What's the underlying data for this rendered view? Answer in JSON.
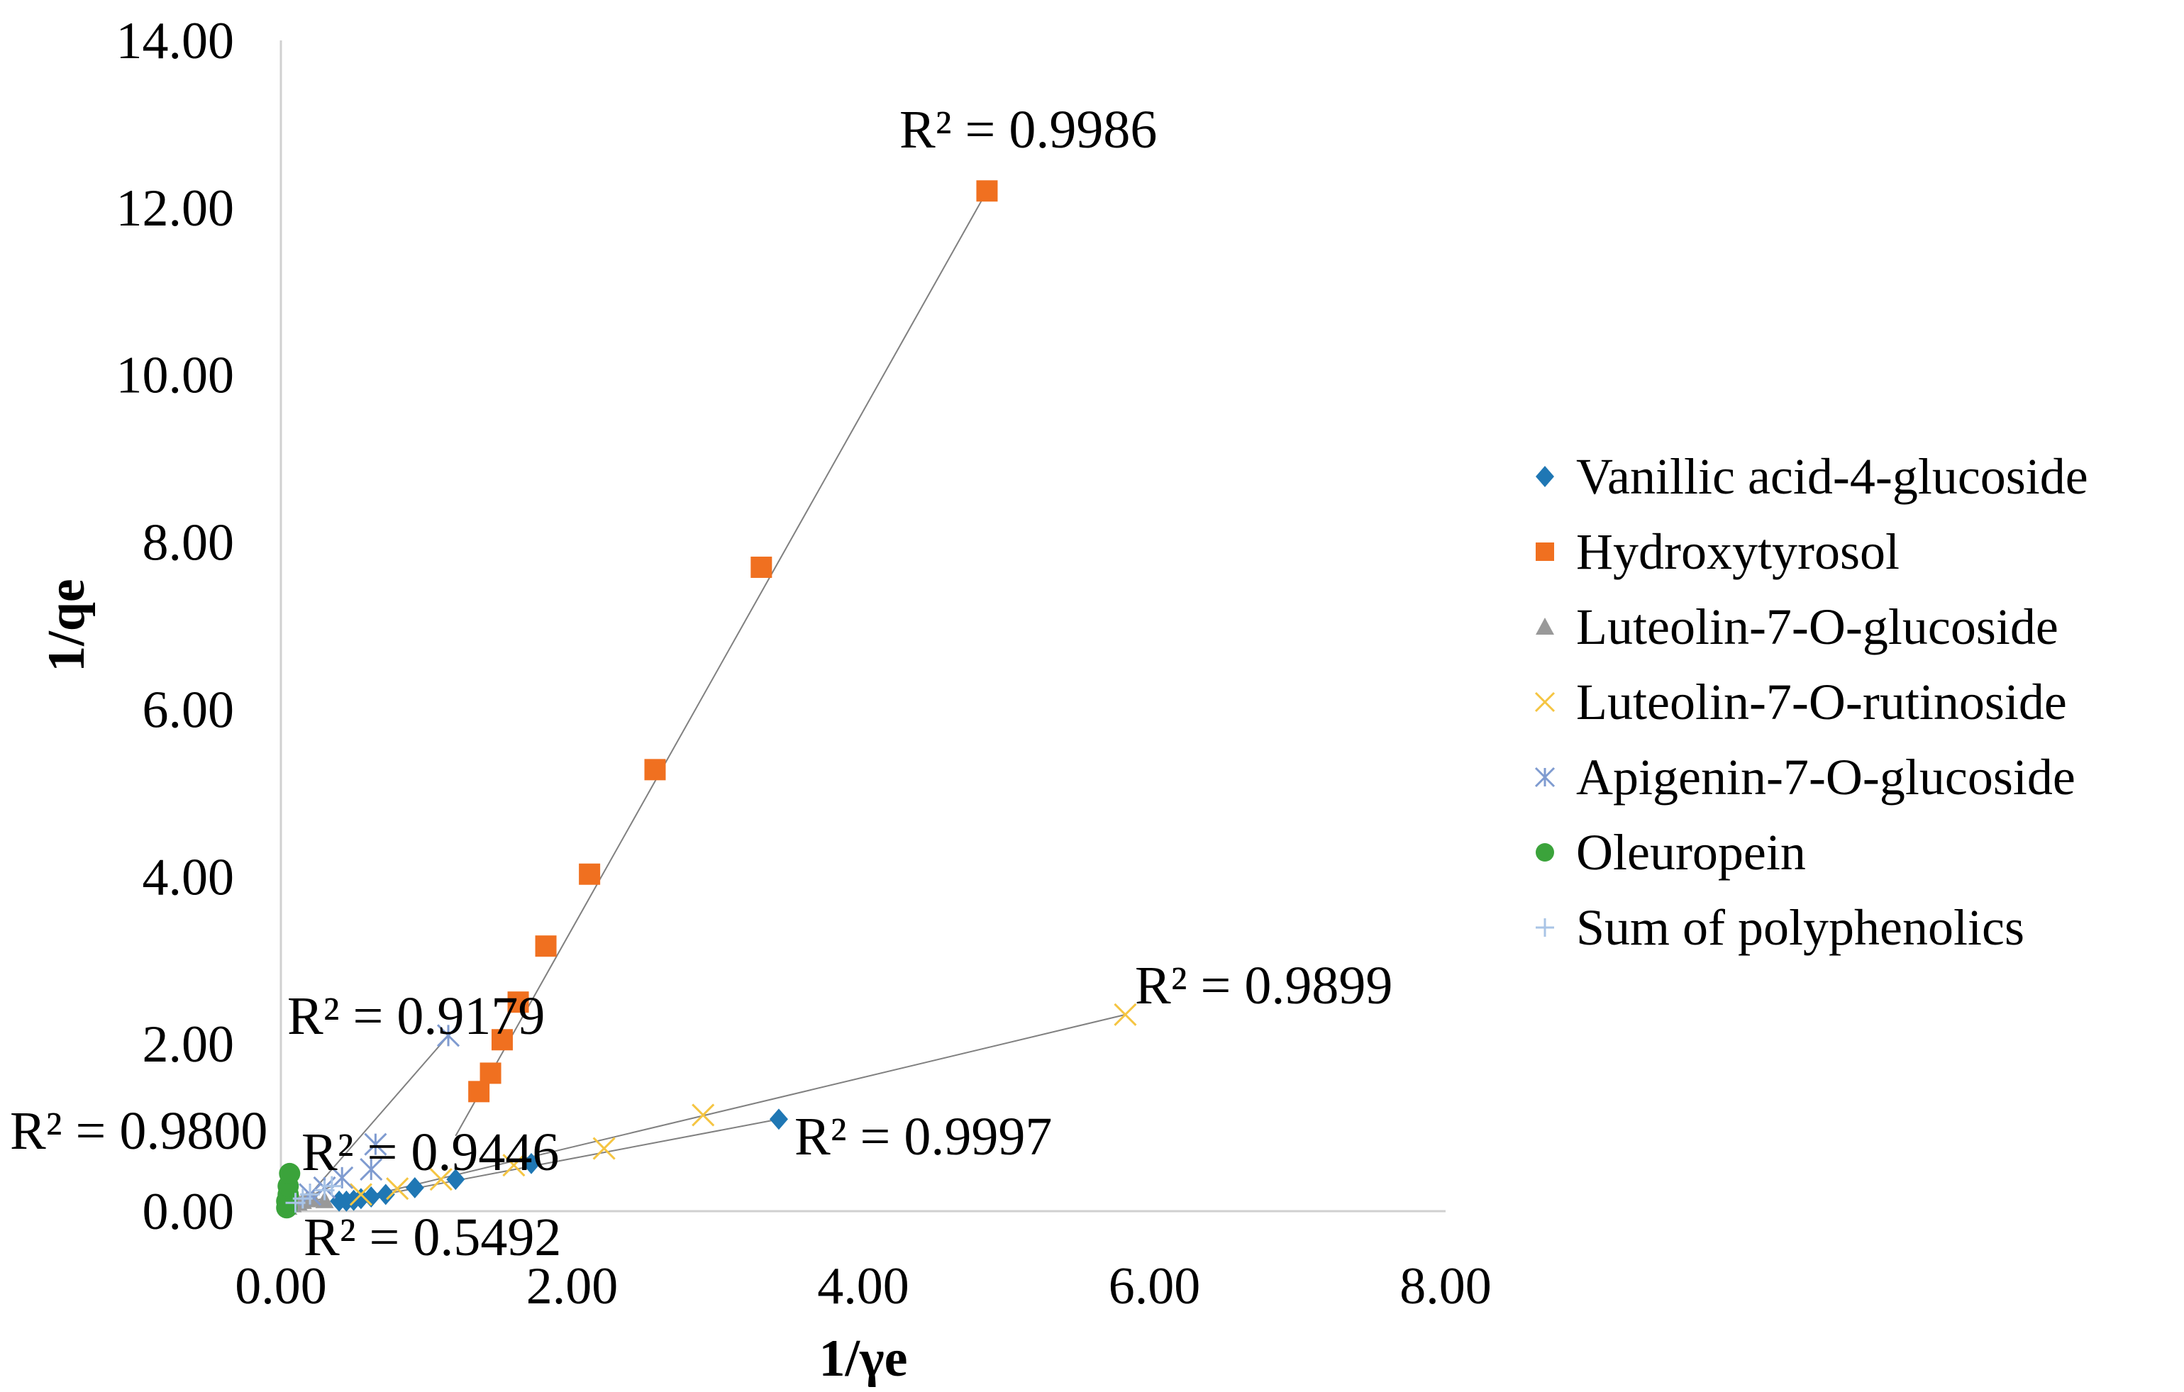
{
  "chart_data": {
    "type": "scatter",
    "xlabel": "1/γe",
    "ylabel": "1/qe",
    "xlim": [
      0,
      8
    ],
    "ylim": [
      0,
      14
    ],
    "x_ticks": [
      "0.00",
      "2.00",
      "4.00",
      "6.00",
      "8.00"
    ],
    "y_ticks": [
      "0.00",
      "2.00",
      "4.00",
      "6.00",
      "8.00",
      "10.00",
      "12.00",
      "14.00"
    ],
    "grid": false,
    "legend_position": "right",
    "series": [
      {
        "name": "Vanillic acid-4-glucoside",
        "marker": "diamond",
        "color": "#1F77B4",
        "points": [
          [
            0.4,
            0.12
          ],
          [
            0.45,
            0.12
          ],
          [
            0.5,
            0.13
          ],
          [
            0.55,
            0.15
          ],
          [
            0.62,
            0.17
          ],
          [
            0.72,
            0.2
          ],
          [
            0.92,
            0.28
          ],
          [
            1.2,
            0.38
          ],
          [
            1.72,
            0.57
          ],
          [
            3.42,
            1.1
          ]
        ],
        "r2_label": "R² = 0.9997",
        "trendline": [
          [
            0.4,
            0.1
          ],
          [
            3.42,
            1.1
          ]
        ]
      },
      {
        "name": "Hydroxytyrosol",
        "marker": "square",
        "color": "#F07020",
        "points": [
          [
            1.36,
            1.43
          ],
          [
            1.44,
            1.65
          ],
          [
            1.52,
            2.05
          ],
          [
            1.63,
            2.5
          ],
          [
            1.82,
            3.17
          ],
          [
            2.12,
            4.03
          ],
          [
            2.57,
            5.28
          ],
          [
            3.3,
            7.7
          ],
          [
            4.85,
            12.2
          ]
        ],
        "r2_label": "R² = 0.9986",
        "trendline": [
          [
            1.2,
            0.9
          ],
          [
            4.85,
            12.2
          ]
        ]
      },
      {
        "name": "Luteolin-7-O-glucoside",
        "marker": "triangle",
        "color": "#999999",
        "points": [
          [
            0.05,
            0.05
          ],
          [
            0.08,
            0.08
          ],
          [
            0.12,
            0.1
          ],
          [
            0.15,
            0.12
          ],
          [
            0.18,
            0.14
          ],
          [
            0.22,
            0.15
          ],
          [
            0.3,
            0.13
          ]
        ],
        "r2_label": "R² = 0.5492",
        "trendline": [
          [
            0.05,
            0.08
          ],
          [
            0.3,
            0.15
          ]
        ]
      },
      {
        "name": "Luteolin-7-O-rutinoside",
        "marker": "x",
        "color": "#F5C542",
        "points": [
          [
            0.55,
            0.2
          ],
          [
            0.8,
            0.27
          ],
          [
            1.1,
            0.38
          ],
          [
            1.6,
            0.55
          ],
          [
            2.22,
            0.75
          ],
          [
            2.9,
            1.15
          ],
          [
            5.8,
            2.35
          ]
        ],
        "r2_label": "R² = 0.9899",
        "trendline": [
          [
            0.4,
            0.1
          ],
          [
            5.8,
            2.35
          ]
        ]
      },
      {
        "name": "Apigenin-7-O-glucoside",
        "marker": "asterisk",
        "color": "#7F9BD0",
        "points": [
          [
            0.2,
            0.2
          ],
          [
            0.3,
            0.28
          ],
          [
            0.42,
            0.4
          ],
          [
            0.62,
            0.5
          ],
          [
            0.65,
            0.8
          ],
          [
            1.15,
            2.1
          ]
        ],
        "r2_label": "R² = 0.9179",
        "trendline": [
          [
            0.1,
            0.0
          ],
          [
            1.15,
            2.1
          ]
        ]
      },
      {
        "name": "Oleuropein",
        "marker": "circle",
        "color": "#3BA33B",
        "points": [
          [
            0.04,
            0.04
          ],
          [
            0.04,
            0.12
          ],
          [
            0.05,
            0.2
          ],
          [
            0.05,
            0.3
          ],
          [
            0.06,
            0.45
          ]
        ],
        "r2_label": "R² = 0.9800",
        "trendline": [
          [
            0.03,
            0.0
          ],
          [
            0.07,
            0.45
          ]
        ]
      },
      {
        "name": "Sum of polyphenolics",
        "marker": "plus",
        "color": "#A9C4E6",
        "points": [
          [
            0.1,
            0.1
          ],
          [
            0.15,
            0.15
          ],
          [
            0.2,
            0.2
          ],
          [
            0.3,
            0.25
          ],
          [
            0.35,
            0.3
          ]
        ],
        "r2_label": "R² = 0.9446",
        "trendline": [
          [
            0.1,
            0.1
          ],
          [
            0.35,
            0.3
          ]
        ]
      }
    ]
  }
}
